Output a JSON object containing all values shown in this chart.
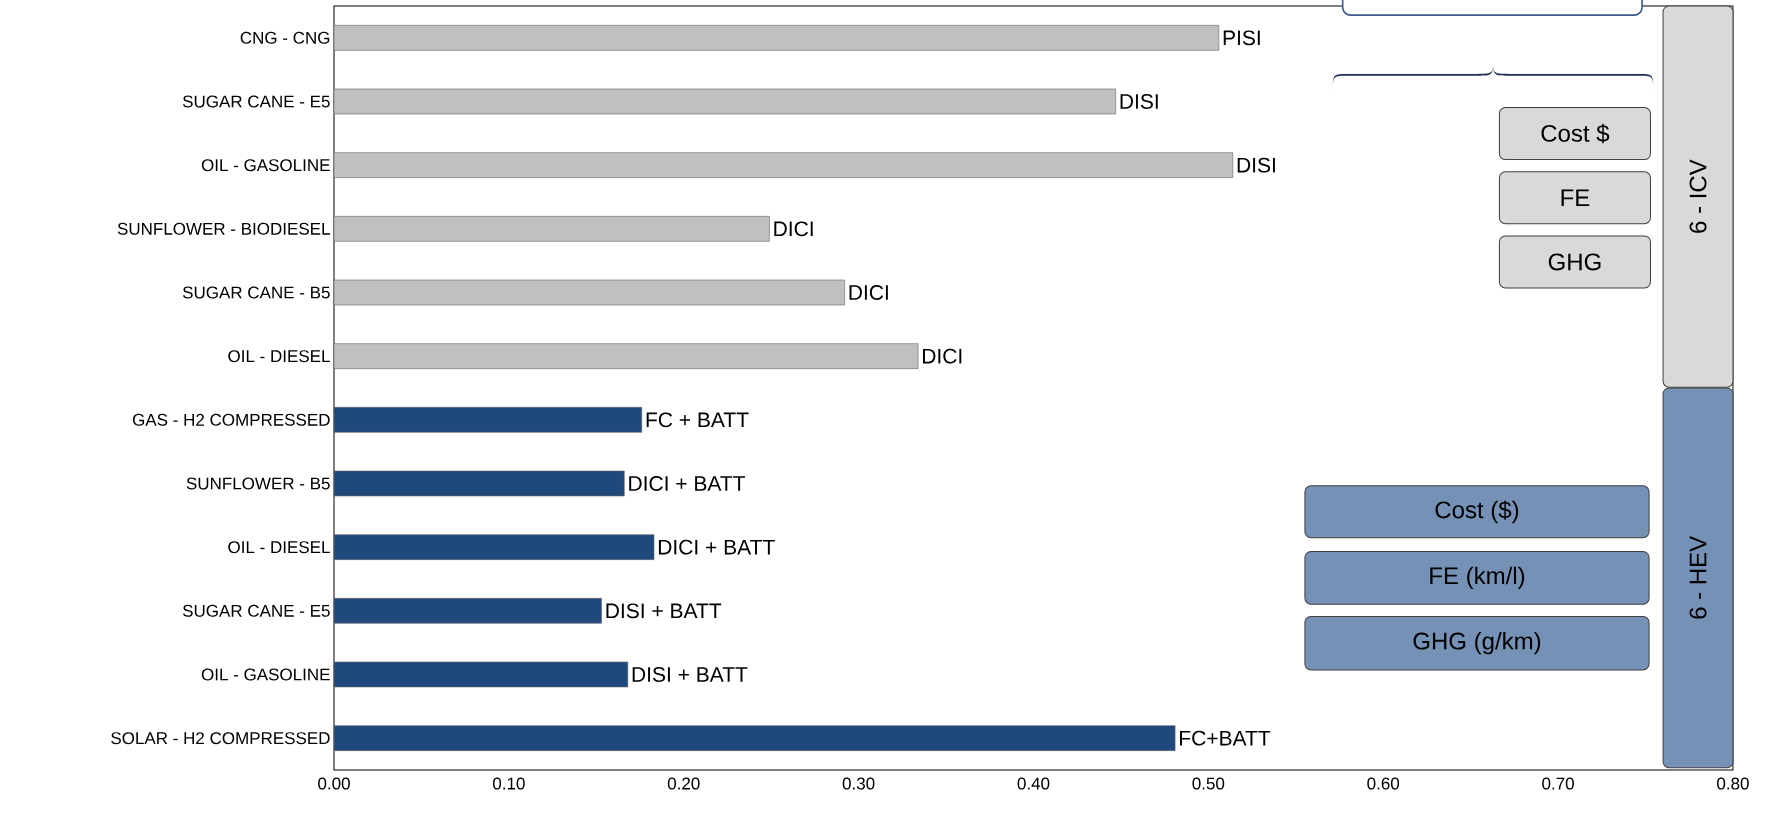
{
  "chart_data": {
    "type": "bar",
    "orientation": "horizontal",
    "categories": [
      "CNG - CNG",
      "SUGAR CANE - E5",
      "OIL - GASOLINE",
      "SUNFLOWER - BIODIESEL",
      "SUGAR CANE - B5",
      "OIL - DIESEL",
      "GAS - H2 COMPRESSED",
      "SUNFLOWER - B5",
      "OIL - DIESEL",
      "SUGAR CANE - E5",
      "OIL - GASOLINE",
      "SOLAR - H2 COMPRESSED"
    ],
    "values": [
      0.506,
      0.447,
      0.514,
      0.249,
      0.292,
      0.334,
      0.176,
      0.166,
      0.183,
      0.153,
      0.168,
      0.481
    ],
    "colors": [
      "#c0c0c0",
      "#c0c0c0",
      "#c0c0c0",
      "#c0c0c0",
      "#c0c0c0",
      "#c0c0c0",
      "#1f497d",
      "#1f497d",
      "#1f497d",
      "#1f497d",
      "#1f497d",
      "#1f497d"
    ],
    "value_labels": [
      "PISI",
      "DISI",
      "DISI",
      "DICI",
      "DICI",
      "DICI",
      "FC + BATT",
      "DICI + BATT",
      "DICI + BATT",
      "DISI + BATT",
      "DISI + BATT",
      "FC+BATT"
    ],
    "xlim": [
      0,
      0.8
    ],
    "xticks": [
      {
        "value": 0,
        "label": "0.00"
      },
      {
        "value": 0.1,
        "label": "0.10"
      },
      {
        "value": 0.2,
        "label": "0.20"
      },
      {
        "value": 0.3,
        "label": "0.30"
      },
      {
        "value": 0.4,
        "label": "0.40"
      },
      {
        "value": 0.5,
        "label": "0.50"
      },
      {
        "value": 0.6,
        "label": "0.60"
      },
      {
        "value": 0.7,
        "label": "0.70"
      },
      {
        "value": 0.8,
        "label": "0.80"
      }
    ],
    "grid": false,
    "annotations": [
      "Cost $",
      "FE",
      "GHG",
      "Cost ($)",
      "FE (km/l)",
      "GHG (g/km)",
      "6 - ICV",
      "6 - HEV"
    ]
  }
}
